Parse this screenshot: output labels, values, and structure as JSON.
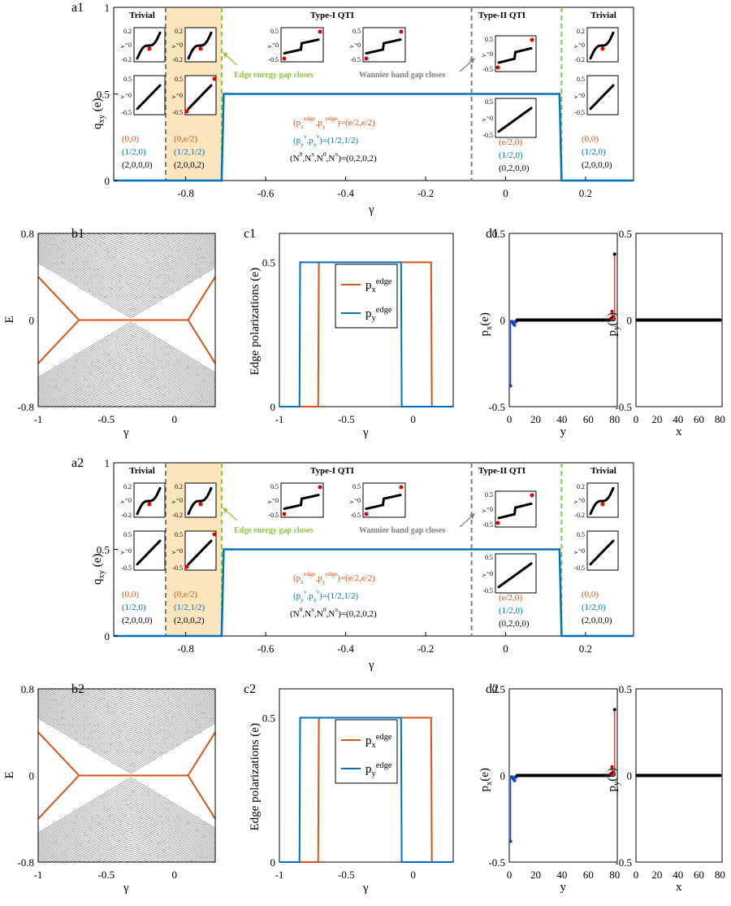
{
  "colors": {
    "blue": "#0072BD",
    "orange": "#D95319",
    "green": "#8CC63F",
    "gray": "#7F7F7F",
    "shade": "#FBE5BD",
    "band": "#4D4D4D"
  },
  "panels": [
    {
      "suffix": "1",
      "a": {
        "label": "a1",
        "ylabel": "q",
        "ylabel_sub": "xy",
        "ylabel_unit": " (e)",
        "xlabel": "γ",
        "xticks": [
          "-0.8",
          "-0.6",
          "-0.4",
          "-0.2",
          "0",
          "0.2"
        ],
        "yticks": [
          "0",
          "0.5",
          "1"
        ],
        "phases": [
          "Trivial",
          "Type-I QTI",
          "Type-II QTI",
          "Trivial"
        ],
        "notes": {
          "edge_gap": "Edge energy gap closes",
          "wannier_gap": "Wannier band gap closes"
        },
        "invariants": {
          "trivial_left": [
            "(0,0)",
            "(1/2,0)",
            "(2,0,0,0)"
          ],
          "shaded": [
            "(0,e/2)",
            "(1/2,1/2)",
            "(2,0,0,2)"
          ],
          "type1": [
            "=(e/2,e/2)",
            "=(1/2,1/2)",
            "=(0,2,0,2)"
          ],
          "type2": [
            "(e/2,0)",
            "(1/2,0)",
            "(0,2,0,0)"
          ],
          "trivial_right": [
            "(0,0)",
            "(1/2,0)",
            "(2,0,0,0)"
          ]
        },
        "inset_ticks": {
          "a": [
            "0.2",
            "0",
            "-0.2"
          ],
          "b": [
            "0.5",
            "0",
            "-0.5"
          ]
        }
      },
      "b": {
        "label": "b1",
        "ylabel": "E",
        "xlabel": "γ",
        "xticks": [
          "-1",
          "-0.5",
          "0"
        ],
        "yticks": [
          "0.8",
          "0",
          "-0.8"
        ]
      },
      "c": {
        "label": "c1",
        "ylabel": "Edge polarizations (e)",
        "xlabel": "γ",
        "xticks": [
          "-1",
          "-0.5",
          "0"
        ],
        "yticks": [
          "0.5",
          "0"
        ],
        "legend": [
          "p",
          "p"
        ],
        "legend_sub": [
          "x",
          "y"
        ],
        "legend_sup": "edge"
      },
      "d": {
        "label": "d1",
        "ylabel_left": "p",
        "ylabel_left_sub": "x",
        "ylabel_right": "p",
        "ylabel_right_sub": "y",
        "ylabel_unit": "(e)",
        "xlabel_left": "y",
        "xlabel_right": "x",
        "xticks": [
          "0",
          "20",
          "40",
          "60",
          "80"
        ],
        "yticks": [
          "0.5",
          "0",
          "-0.5"
        ]
      }
    },
    {
      "suffix": "2",
      "a": {
        "label": "a2",
        "ylabel": "q",
        "ylabel_sub": "xy",
        "ylabel_unit": " (e)",
        "xlabel": "γ",
        "xticks": [
          "-0.8",
          "-0.6",
          "-0.4",
          "-0.2",
          "0",
          "0.2"
        ],
        "yticks": [
          "0",
          "0.5",
          "1"
        ],
        "phases": [
          "Trivial",
          "Type-I QTI",
          "Type-II QTI",
          "Trivial"
        ],
        "notes": {
          "edge_gap": "Edge energy gap closes",
          "wannier_gap": "Wannier band gap closes"
        },
        "invariants": {
          "trivial_left": [
            "(0,0)",
            "(1/2,0)",
            "(2,0,0,0)"
          ],
          "shaded": [
            "(0,e/2)",
            "(1/2,1/2)",
            "(2,0,0,2)"
          ],
          "type1": [
            "=(e/2,e/2)",
            "=(1/2,1/2)",
            "=(0,2,0,2)"
          ],
          "type2": [
            "(e/2,0)",
            "(1/2,0)",
            "(0,2,0,0)"
          ],
          "trivial_right": [
            "(0,0)",
            "(1/2,0)",
            "(2,0,0,0)"
          ]
        },
        "inset_ticks": {
          "a": [
            "0.2",
            "0",
            "-0.2"
          ],
          "b": [
            "0.5",
            "0",
            "-0.5"
          ]
        }
      },
      "b": {
        "label": "b2",
        "ylabel": "E",
        "xlabel": "γ",
        "xticks": [
          "-1",
          "-0.5",
          "0"
        ],
        "yticks": [
          "0.8",
          "0",
          "-0.8"
        ]
      },
      "c": {
        "label": "c2",
        "ylabel": "Edge polarizations (e)",
        "xlabel": "γ",
        "xticks": [
          "-1",
          "-0.5",
          "0"
        ],
        "yticks": [
          "0.5",
          "0"
        ],
        "legend": [
          "p",
          "p"
        ],
        "legend_sub": [
          "x",
          "y"
        ],
        "legend_sup": "edge"
      },
      "d": {
        "label": "d2",
        "ylabel_left": "p",
        "ylabel_left_sub": "x",
        "ylabel_right": "p",
        "ylabel_right_sub": "y",
        "ylabel_unit": "(e)",
        "xlabel_left": "y",
        "xlabel_right": "x",
        "xticks": [
          "0",
          "20",
          "40",
          "60",
          "80"
        ],
        "yticks": [
          "0.5",
          "0",
          "-0.5"
        ]
      }
    }
  ],
  "chart_data": [
    {
      "type": "line",
      "panel": "a",
      "series": [
        {
          "x": [
            -0.98,
            -0.71,
            -0.705,
            0.135,
            0.14,
            0.32
          ],
          "y": [
            0,
            0,
            0.5,
            0.5,
            0,
            0
          ]
        }
      ],
      "xlim": [
        -0.98,
        0.32
      ],
      "ylim": [
        0,
        1
      ],
      "boundaries": {
        "gray": [
          -0.85,
          -0.085
        ],
        "green": [
          -0.71,
          0.14
        ]
      }
    },
    {
      "type": "line",
      "panel": "b",
      "edge_state": {
        "x": [
          -1,
          -0.7,
          0.1,
          0.3
        ],
        "y": [
          0.4,
          0,
          0,
          0.4
        ]
      },
      "xlim": [
        -1,
        0.3
      ],
      "ylim": [
        -0.8,
        0.8
      ]
    },
    {
      "type": "line",
      "panel": "c",
      "series": [
        {
          "x": [
            -1,
            -0.71,
            -0.705,
            0.135,
            0.14,
            0.3
          ],
          "y": [
            0,
            0,
            0.5,
            0.5,
            0,
            0
          ]
        },
        {
          "x": [
            -1,
            -0.85,
            -0.845,
            -0.09,
            -0.085,
            0.3
          ],
          "y": [
            0,
            0,
            0.5,
            0.5,
            0,
            0
          ]
        }
      ],
      "xlim": [
        -1,
        0.3
      ],
      "ylim": [
        0,
        0.6
      ]
    },
    {
      "type": "scatter",
      "panel": "d",
      "px": {
        "special": [
          [
            1,
            -0.38
          ],
          [
            2,
            -0.01
          ],
          [
            3,
            -0.02
          ],
          [
            4,
            -0.03
          ],
          [
            5,
            -0.01
          ],
          [
            77,
            0.01
          ],
          [
            78,
            0.05
          ],
          [
            79,
            0.02
          ],
          [
            80,
            0.38
          ]
        ]
      },
      "py": {
        "values": "all 0"
      },
      "xlim": [
        0,
        82
      ],
      "ylim": [
        -0.5,
        0.5
      ]
    }
  ]
}
